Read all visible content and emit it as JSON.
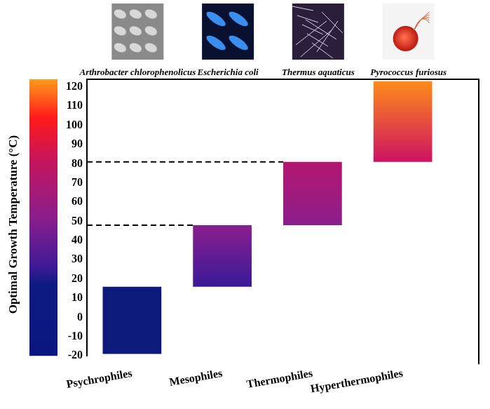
{
  "chart_data": {
    "type": "bar",
    "y_label": "Optimal Growth Temperature (°C)",
    "categories": [
      "Psychrophiles",
      "Mesophiles",
      "Thermophiles",
      "Hyperthermophiles"
    ],
    "annotations": [
      "Arthrobacter chlorophenolicus",
      "Escherichia coli",
      "Thermus aquaticus",
      "Pyrococcus furiosus"
    ],
    "values": [
      [
        -19,
        16
      ],
      [
        16,
        48
      ],
      [
        48,
        81
      ],
      [
        81,
        123
      ]
    ],
    "colors": [
      [
        "#0c1a7c",
        "#0c1a7c"
      ],
      [
        "#3a1a98",
        "#8a1e8e"
      ],
      [
        "#8c1d8c",
        "#b3176f"
      ],
      [
        "#cc1262",
        "#ff8c1a"
      ]
    ],
    "ylim": [
      -20,
      124
    ],
    "yticks": [
      -20,
      -10,
      0,
      10,
      20,
      30,
      40,
      50,
      60,
      70,
      80,
      90,
      100,
      110,
      120
    ],
    "grid": false,
    "reference_lines": [
      {
        "value": 81,
        "category": "Thermophiles"
      },
      {
        "value": 48,
        "category": "Mesophiles"
      }
    ]
  }
}
